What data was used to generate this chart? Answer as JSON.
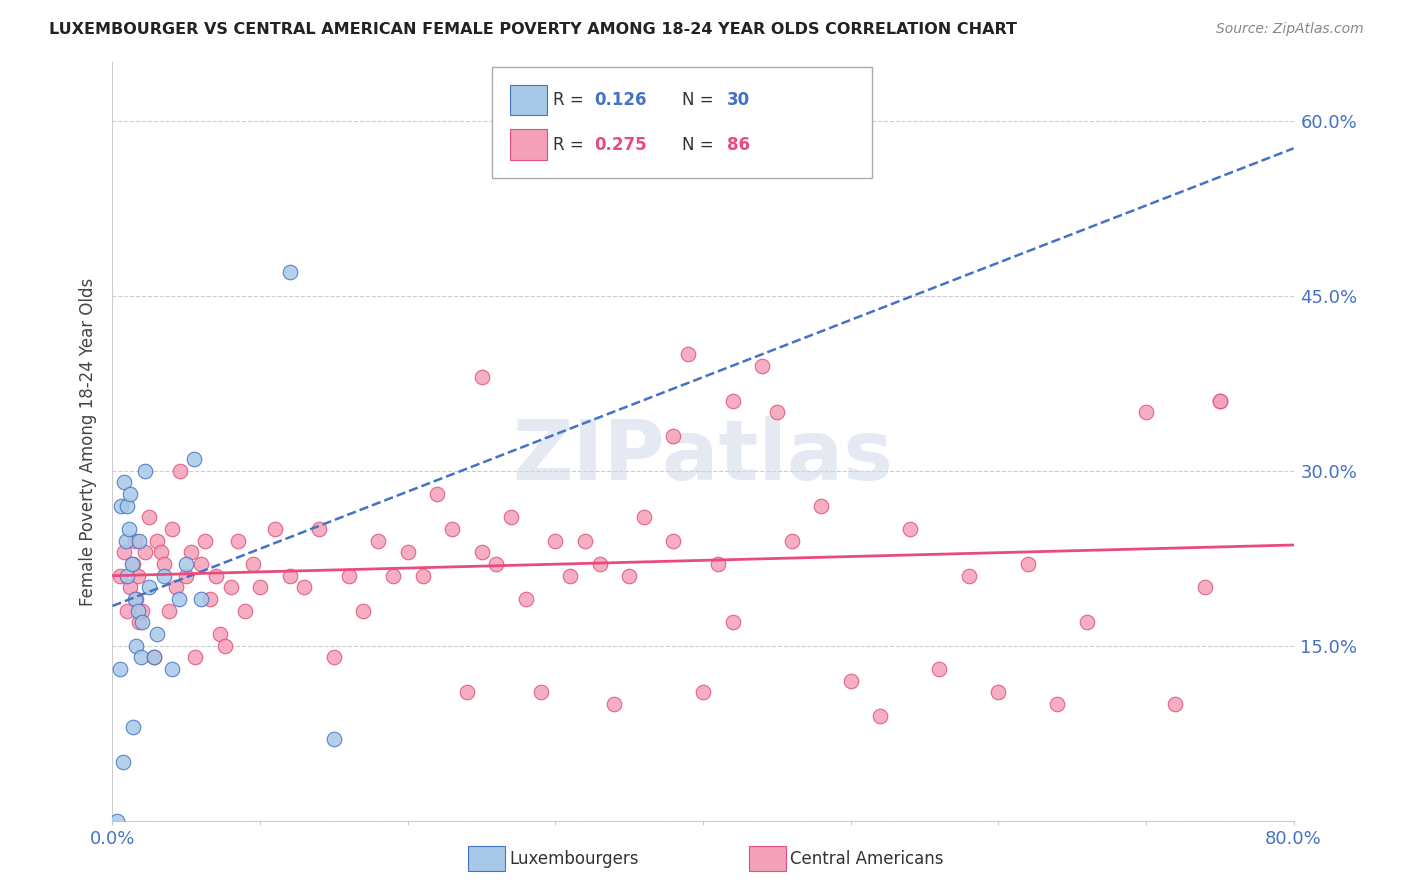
{
  "title": "LUXEMBOURGER VS CENTRAL AMERICAN FEMALE POVERTY AMONG 18-24 YEAR OLDS CORRELATION CHART",
  "source": "Source: ZipAtlas.com",
  "ylabel": "Female Poverty Among 18-24 Year Olds",
  "xlim": [
    0.0,
    0.8
  ],
  "ylim": [
    0.0,
    0.65
  ],
  "blue_color": "#a8c8e8",
  "blue_edge_color": "#4472c4",
  "pink_color": "#f4a0b8",
  "pink_edge_color": "#e0507a",
  "blue_line_color": "#4472c4",
  "pink_line_color": "#e84c7d",
  "watermark_text": "ZIPatlas",
  "legend_r_blue": "0.126",
  "legend_n_blue": "30",
  "legend_r_pink": "0.275",
  "legend_n_pink": "86",
  "blue_x": [
    0.003,
    0.005,
    0.006,
    0.007,
    0.008,
    0.009,
    0.01,
    0.01,
    0.011,
    0.012,
    0.013,
    0.014,
    0.015,
    0.016,
    0.017,
    0.018,
    0.019,
    0.02,
    0.022,
    0.025,
    0.028,
    0.03,
    0.035,
    0.04,
    0.045,
    0.05,
    0.055,
    0.06,
    0.12,
    0.15
  ],
  "blue_y": [
    0.0,
    0.13,
    0.27,
    0.05,
    0.29,
    0.24,
    0.21,
    0.27,
    0.25,
    0.28,
    0.22,
    0.08,
    0.19,
    0.15,
    0.18,
    0.24,
    0.14,
    0.17,
    0.3,
    0.2,
    0.14,
    0.16,
    0.21,
    0.13,
    0.19,
    0.22,
    0.31,
    0.19,
    0.47,
    0.07
  ],
  "pink_x": [
    0.005,
    0.008,
    0.01,
    0.012,
    0.014,
    0.015,
    0.016,
    0.017,
    0.018,
    0.02,
    0.022,
    0.025,
    0.028,
    0.03,
    0.033,
    0.035,
    0.038,
    0.04,
    0.043,
    0.046,
    0.05,
    0.053,
    0.056,
    0.06,
    0.063,
    0.066,
    0.07,
    0.073,
    0.076,
    0.08,
    0.085,
    0.09,
    0.095,
    0.1,
    0.11,
    0.12,
    0.13,
    0.14,
    0.15,
    0.16,
    0.17,
    0.18,
    0.19,
    0.2,
    0.21,
    0.22,
    0.23,
    0.24,
    0.25,
    0.26,
    0.27,
    0.28,
    0.29,
    0.3,
    0.31,
    0.32,
    0.33,
    0.34,
    0.36,
    0.38,
    0.39,
    0.4,
    0.41,
    0.42,
    0.44,
    0.46,
    0.48,
    0.5,
    0.52,
    0.54,
    0.56,
    0.58,
    0.6,
    0.62,
    0.64,
    0.66,
    0.7,
    0.72,
    0.74,
    0.75,
    0.25,
    0.35,
    0.45,
    0.38,
    0.42,
    0.75
  ],
  "pink_y": [
    0.21,
    0.23,
    0.18,
    0.2,
    0.22,
    0.24,
    0.19,
    0.21,
    0.17,
    0.18,
    0.23,
    0.26,
    0.14,
    0.24,
    0.23,
    0.22,
    0.18,
    0.25,
    0.2,
    0.3,
    0.21,
    0.23,
    0.14,
    0.22,
    0.24,
    0.19,
    0.21,
    0.16,
    0.15,
    0.2,
    0.24,
    0.18,
    0.22,
    0.2,
    0.25,
    0.21,
    0.2,
    0.25,
    0.14,
    0.21,
    0.18,
    0.24,
    0.21,
    0.23,
    0.21,
    0.28,
    0.25,
    0.11,
    0.23,
    0.22,
    0.26,
    0.19,
    0.11,
    0.24,
    0.21,
    0.24,
    0.22,
    0.1,
    0.26,
    0.24,
    0.4,
    0.11,
    0.22,
    0.17,
    0.39,
    0.24,
    0.27,
    0.12,
    0.09,
    0.25,
    0.13,
    0.21,
    0.11,
    0.22,
    0.1,
    0.17,
    0.35,
    0.1,
    0.2,
    0.36,
    0.38,
    0.21,
    0.35,
    0.33,
    0.36,
    0.36
  ]
}
